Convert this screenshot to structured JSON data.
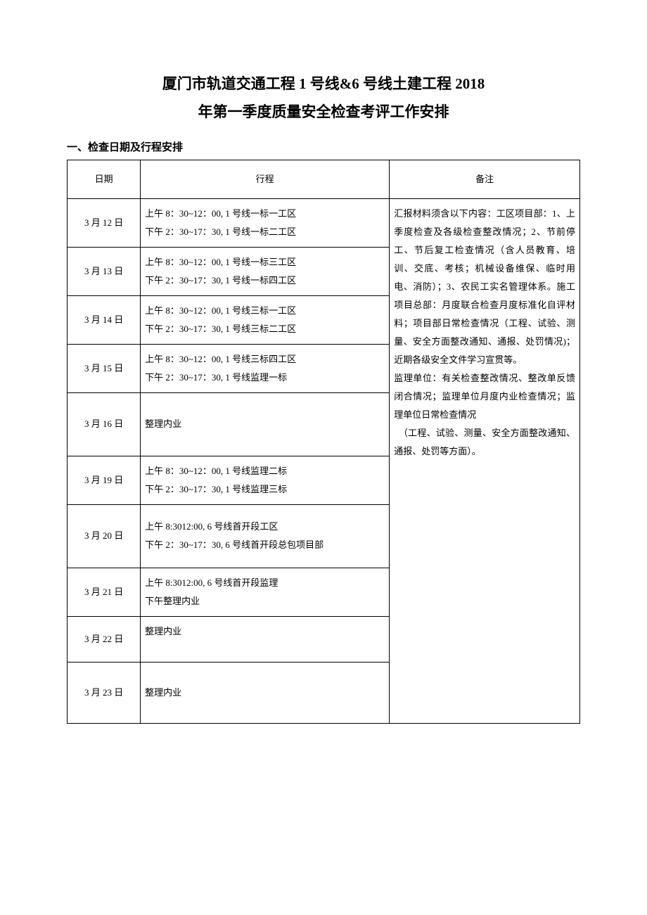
{
  "title_line1": "厦门市轨道交通工程 1 号线&6 号线土建工程 2018",
  "title_line2": "年第一季度质量安全检查考评工作安排",
  "section_heading": "一、检查日期及行程安排",
  "table": {
    "headers": {
      "date": "日期",
      "itinerary": "行程",
      "remark": "备注"
    },
    "rows": [
      {
        "date": "3 月 12 日",
        "lines": [
          "上午 8：30~12：00, 1 号线一标一工区",
          "下午 2：30~17：30, 1 号线一标二工区"
        ]
      },
      {
        "date": "3 月 13 日",
        "lines": [
          "上午 8：30~12：00, 1 号线一标三工区",
          "下午 2：30~17：30, 1 号线一标四工区"
        ]
      },
      {
        "date": "3 月 14 日",
        "lines": [
          "上午 8：30~12：00, 1 号线三标一工区",
          "下午 2：30~17：30, 1 号线三标二工区"
        ]
      },
      {
        "date": "3 月 15 日",
        "lines": [
          "上午 8：30~12：00, 1 号线三标四工区",
          "下午 2：30~17：30, 1 号线监理一标"
        ]
      },
      {
        "date": "3 月 16 日",
        "lines": [
          "整理内业"
        ],
        "tall": true
      },
      {
        "date": "3 月 19 日",
        "lines": [
          "上午 8：30~12：00, 1 号线监理二标",
          "下午 2：30~17：30, 1 号线监理三标"
        ]
      },
      {
        "date": "3 月 20 日",
        "lines": [
          "上午 8:3012:00, 6 号线首开段工区",
          "下午 2：30~17：30, 6 号线首开段总包项目部"
        ],
        "tall": true
      },
      {
        "date": "3 月 21 日",
        "lines": [
          "上午 8:3012:00, 6 号线首开段监理",
          "下午整理内业"
        ]
      },
      {
        "date": "3 月 22 日",
        "lines": [
          "整理内业"
        ],
        "topalign": true
      },
      {
        "date": "3 月 23 日",
        "lines": [
          "整理内业"
        ],
        "singleheight": true
      }
    ],
    "remark_text": "汇报材料须含以下内容：工区项目部：1、上季度检查及各级检查整改情况；2、节前停工、节后复工检查情况（含人员教育、培训、交底、考核；机械设备维保、临时用电、消防）；3、农民工实名管理体系。施工项目总部：月度联合检查月度标准化自评材料；项目部日常检查情况（工程、试验、测量、安全方面整改通知、通报、处罚情况)；近期各级安全文件学习宣贯等。\n监理单位：有关检查整改情况、整改单反馈闭合情况；监理单位月度内业检查情况；监理单位日常检查情况\n　（工程、试验、测量、安全方面整改通知、通报、处罚等方面）。"
  }
}
